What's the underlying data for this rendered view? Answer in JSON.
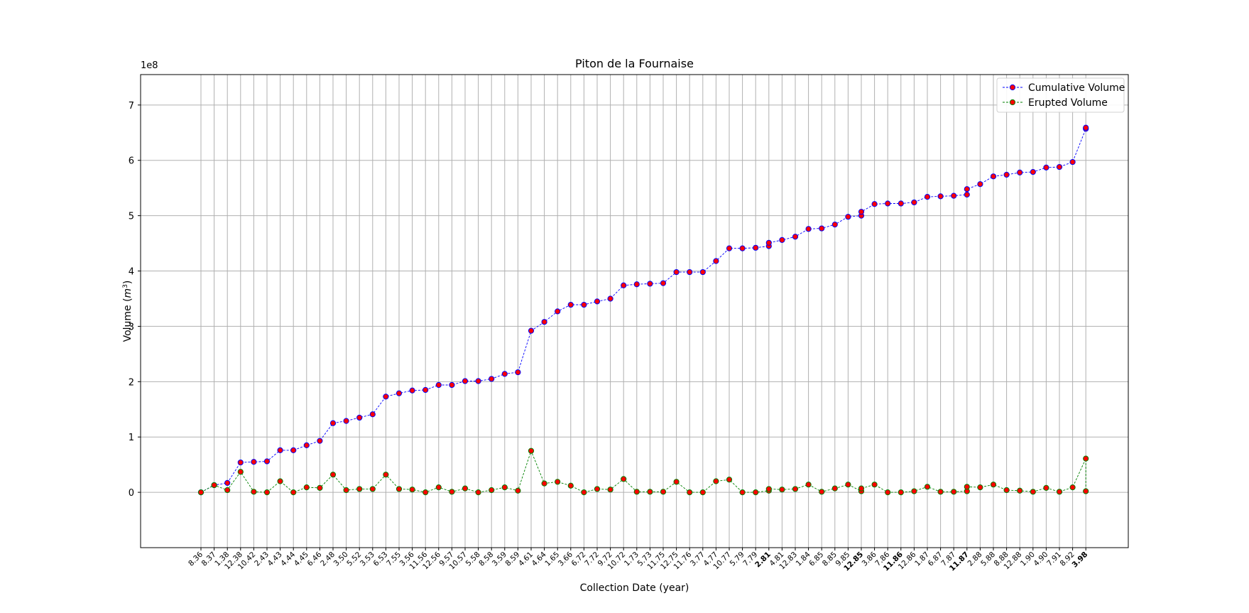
{
  "chart_data": {
    "type": "line",
    "title": "Piton de la Fournaise",
    "xlabel": "Collection Date (year)",
    "ylabel": "Volume (m³)",
    "ylabel_base": "Volume (",
    "ylabel_unit": "m",
    "ylabel_exp": "3",
    "ylabel_close": ")",
    "y_multiplier": "1e8",
    "ylim": [
      -1.0,
      7.55
    ],
    "yticks": [
      0,
      1,
      2,
      3,
      4,
      5,
      6,
      7
    ],
    "grid": true,
    "legend_position": "top-right",
    "x_tick_labels": [
      "8.36",
      "8.37",
      "1.38",
      "12.38",
      "10.42",
      "2.43",
      "4.43",
      "4.44",
      "4.45",
      "6.46",
      "2.48",
      "3.50",
      "5.52",
      "3.53",
      "6.53",
      "7.55",
      "3.56",
      "11.56",
      "12.56",
      "9.57",
      "10.57",
      "5.58",
      "8.58",
      "3.59",
      "8.59",
      "4.61",
      "4.64",
      "1.65",
      "3.66",
      "6.72",
      "7.72",
      "9.72",
      "10.72",
      "1.73",
      "5.73",
      "11.75",
      "12.75",
      "11.76",
      "3.77",
      "4.77",
      "10.77",
      "5.79",
      "7.79",
      "2.81",
      "4.81",
      "12.83",
      "1.84",
      "6.85",
      "8.85",
      "9.85",
      "12.85",
      "3.86",
      "7.86",
      "11.86",
      "12.86",
      "1.87",
      "6.87",
      "7.87",
      "11.87",
      "2.88",
      "5.88",
      "8.88",
      "12.88",
      "1.90",
      "4.90",
      "7.91",
      "8.92",
      "3.98"
    ],
    "bold_tick_indices": [
      43,
      50,
      53,
      58,
      67
    ],
    "series": [
      {
        "name": "Cumulative Volume",
        "line_color": "#0000ff",
        "marker_face": "#ff0000",
        "marker_edge": "#0000ff",
        "points": [
          [
            0,
            0.0
          ],
          [
            1,
            0.13
          ],
          [
            2,
            0.17
          ],
          [
            3,
            0.54
          ],
          [
            4,
            0.55
          ],
          [
            5,
            0.56
          ],
          [
            6,
            0.76
          ],
          [
            7,
            0.76
          ],
          [
            8,
            0.85
          ],
          [
            9,
            0.93
          ],
          [
            10,
            1.25
          ],
          [
            11,
            1.29
          ],
          [
            12,
            1.35
          ],
          [
            13,
            1.41
          ],
          [
            14,
            1.73
          ],
          [
            15,
            1.79
          ],
          [
            16,
            1.84
          ],
          [
            17,
            1.85
          ],
          [
            18,
            1.94
          ],
          [
            19,
            1.94
          ],
          [
            20,
            2.01
          ],
          [
            21,
            2.01
          ],
          [
            22,
            2.05
          ],
          [
            23,
            2.14
          ],
          [
            24,
            2.17
          ],
          [
            25,
            2.92
          ],
          [
            26,
            3.08
          ],
          [
            27,
            3.27
          ],
          [
            28,
            3.39
          ],
          [
            29,
            3.39
          ],
          [
            30,
            3.45
          ],
          [
            31,
            3.5
          ],
          [
            32,
            3.74
          ],
          [
            33,
            3.76
          ],
          [
            34,
            3.77
          ],
          [
            35,
            3.78
          ],
          [
            36,
            3.98
          ],
          [
            37,
            3.98
          ],
          [
            38,
            3.98
          ],
          [
            39,
            4.18
          ],
          [
            40,
            4.41
          ],
          [
            41,
            4.41
          ],
          [
            42,
            4.42
          ],
          [
            43,
            4.45
          ],
          [
            43,
            4.51
          ],
          [
            44,
            4.56
          ],
          [
            45,
            4.62
          ],
          [
            46,
            4.76
          ],
          [
            47,
            4.77
          ],
          [
            48,
            4.84
          ],
          [
            49,
            4.98
          ],
          [
            50,
            5.0
          ],
          [
            50,
            5.07
          ],
          [
            51,
            5.21
          ],
          [
            52,
            5.22
          ],
          [
            53,
            5.22
          ],
          [
            54,
            5.24
          ],
          [
            55,
            5.34
          ],
          [
            56,
            5.35
          ],
          [
            57,
            5.36
          ],
          [
            58,
            5.38
          ],
          [
            58,
            5.48
          ],
          [
            59,
            5.57
          ],
          [
            60,
            5.71
          ],
          [
            61,
            5.74
          ],
          [
            62,
            5.78
          ],
          [
            63,
            5.79
          ],
          [
            64,
            5.87
          ],
          [
            65,
            5.88
          ],
          [
            66,
            5.97
          ],
          [
            67,
            6.57
          ],
          [
            67,
            6.59
          ]
        ]
      },
      {
        "name": "Erupted Volume",
        "line_color": "#008000",
        "marker_face": "#ff0000",
        "marker_edge": "#008000",
        "points": [
          [
            0,
            0.0
          ],
          [
            1,
            0.13
          ],
          [
            2,
            0.04
          ],
          [
            3,
            0.37
          ],
          [
            4,
            0.01
          ],
          [
            5,
            0.0
          ],
          [
            6,
            0.2
          ],
          [
            7,
            0.0
          ],
          [
            8,
            0.09
          ],
          [
            9,
            0.08
          ],
          [
            10,
            0.32
          ],
          [
            11,
            0.04
          ],
          [
            12,
            0.06
          ],
          [
            13,
            0.06
          ],
          [
            14,
            0.32
          ],
          [
            15,
            0.06
          ],
          [
            16,
            0.05
          ],
          [
            17,
            0.0
          ],
          [
            18,
            0.09
          ],
          [
            19,
            0.01
          ],
          [
            20,
            0.07
          ],
          [
            21,
            0.0
          ],
          [
            22,
            0.04
          ],
          [
            23,
            0.09
          ],
          [
            24,
            0.03
          ],
          [
            25,
            0.75
          ],
          [
            26,
            0.16
          ],
          [
            27,
            0.19
          ],
          [
            28,
            0.12
          ],
          [
            29,
            0.0
          ],
          [
            30,
            0.06
          ],
          [
            31,
            0.05
          ],
          [
            32,
            0.24
          ],
          [
            33,
            0.01
          ],
          [
            34,
            0.01
          ],
          [
            35,
            0.01
          ],
          [
            36,
            0.19
          ],
          [
            37,
            0.0
          ],
          [
            38,
            0.0
          ],
          [
            39,
            0.2
          ],
          [
            40,
            0.23
          ],
          [
            41,
            0.0
          ],
          [
            42,
            0.0
          ],
          [
            43,
            0.03
          ],
          [
            43,
            0.06
          ],
          [
            44,
            0.05
          ],
          [
            45,
            0.06
          ],
          [
            46,
            0.14
          ],
          [
            47,
            0.01
          ],
          [
            48,
            0.07
          ],
          [
            49,
            0.14
          ],
          [
            50,
            0.02
          ],
          [
            50,
            0.07
          ],
          [
            51,
            0.14
          ],
          [
            52,
            0.0
          ],
          [
            53,
            0.0
          ],
          [
            54,
            0.02
          ],
          [
            55,
            0.1
          ],
          [
            56,
            0.01
          ],
          [
            57,
            0.01
          ],
          [
            58,
            0.02
          ],
          [
            58,
            0.1
          ],
          [
            59,
            0.09
          ],
          [
            60,
            0.14
          ],
          [
            61,
            0.04
          ],
          [
            62,
            0.03
          ],
          [
            63,
            0.01
          ],
          [
            64,
            0.08
          ],
          [
            65,
            0.01
          ],
          [
            66,
            0.09
          ],
          [
            67,
            0.61
          ],
          [
            67,
            0.02
          ]
        ]
      }
    ]
  }
}
